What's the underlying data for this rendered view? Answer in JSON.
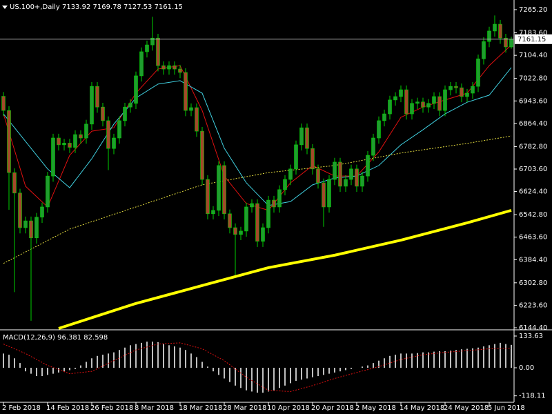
{
  "chart_data": [
    {
      "type": "candlestick",
      "title": "US.100+,Daily 7133.92 7169.78 7127.53 7161.15",
      "categories": [
        "2 Feb 2018",
        null,
        null,
        null,
        null,
        null,
        null,
        null,
        "14 Feb 2018",
        null,
        null,
        null,
        null,
        null,
        null,
        null,
        "26 Feb 2018",
        null,
        null,
        null,
        null,
        null,
        null,
        null,
        "8 Mar 2018",
        null,
        null,
        null,
        null,
        null,
        null,
        null,
        "18 Mar 2018",
        null,
        null,
        null,
        null,
        null,
        null,
        null,
        "28 Mar 2018",
        null,
        null,
        null,
        null,
        null,
        null,
        null,
        "10 Apr 2018",
        null,
        null,
        null,
        null,
        null,
        null,
        null,
        "20 Apr 2018",
        null,
        null,
        null,
        null,
        null,
        null,
        null,
        "2 May 2018",
        null,
        null,
        null,
        null,
        null,
        null,
        null,
        "14 May 2018",
        null,
        null,
        null,
        null,
        null,
        null,
        null,
        "24 May 2018",
        null,
        null,
        null,
        null,
        null,
        null,
        null,
        "5 Jun 2018",
        null,
        null,
        null,
        null
      ],
      "open": [
        6960,
        6910,
        6691,
        6619,
        6497,
        6521,
        6461,
        6534,
        6570,
        6679,
        6813,
        6789,
        6795,
        6780,
        6825,
        6813,
        6862,
        6995,
        6922,
        6874,
        6776,
        6813,
        6874,
        6922,
        6935,
        7032,
        7117,
        7141,
        7165,
        7068,
        7056,
        7068,
        7056,
        7044,
        6910,
        6920,
        6837,
        6667,
        6546,
        6558,
        6716,
        6546,
        6497,
        6473,
        6485,
        6570,
        6582,
        6449,
        6497,
        6594,
        6570,
        6631,
        6667,
        6704,
        6789,
        6849,
        6776,
        6704,
        6655,
        6570,
        6667,
        6728,
        6643,
        6667,
        6704,
        6643,
        6679,
        6752,
        6813,
        6874,
        6898,
        6947,
        6959,
        6983,
        6898,
        6935,
        6940,
        6922,
        6935,
        6959,
        6910,
        6983,
        6995,
        6990,
        6959,
        6971,
        6995,
        7092,
        7153,
        7190,
        7214,
        7165,
        7133.92
      ],
      "high": [
        6975,
        6925,
        6706,
        6634,
        6536,
        6536,
        6549,
        6585,
        6694,
        6828,
        6828,
        6810,
        6810,
        6840,
        6840,
        6877,
        7010,
        7010,
        6937,
        6889,
        6828,
        6889,
        6937,
        6950,
        7047,
        7132,
        7156,
        7240,
        7180,
        7083,
        7083,
        7083,
        7071,
        7059,
        6935,
        6935,
        6852,
        6682,
        6573,
        6731,
        6731,
        6561,
        6512,
        6500,
        6585,
        6597,
        6597,
        6512,
        6609,
        6609,
        6646,
        6682,
        6719,
        6804,
        6864,
        6864,
        6791,
        6719,
        6670,
        6682,
        6743,
        6743,
        6682,
        6719,
        6719,
        6694,
        6767,
        6828,
        6889,
        6913,
        6962,
        6974,
        6998,
        6998,
        6950,
        6955,
        6955,
        6950,
        6974,
        6974,
        6998,
        7010,
        7010,
        7005,
        6986,
        7010,
        7107,
        7168,
        7205,
        7245,
        7229,
        7180,
        7169.78
      ],
      "low": [
        6890,
        6560,
        6270,
        6477,
        6477,
        6169,
        6441,
        6514,
        6550,
        6659,
        6769,
        6769,
        6760,
        6760,
        6793,
        6793,
        6842,
        6902,
        6854,
        6700,
        6756,
        6793,
        6854,
        6902,
        6915,
        7012,
        7097,
        7121,
        7048,
        7036,
        7036,
        7036,
        7024,
        6890,
        6890,
        6817,
        6647,
        6526,
        6526,
        6538,
        6526,
        6477,
        6330,
        6453,
        6465,
        6550,
        6429,
        6429,
        6477,
        6550,
        6550,
        6611,
        6647,
        6684,
        6769,
        6756,
        6684,
        6635,
        6500,
        6550,
        6647,
        6623,
        6623,
        6647,
        6623,
        6623,
        6659,
        6732,
        6793,
        6854,
        6878,
        6927,
        6939,
        6878,
        6878,
        6915,
        6902,
        6902,
        6915,
        6890,
        6890,
        6963,
        6970,
        6939,
        6939,
        6951,
        6975,
        7072,
        7133,
        7170,
        7145,
        7114,
        7127.53
      ],
      "close": [
        6910,
        6691,
        6619,
        6497,
        6521,
        6461,
        6534,
        6570,
        6679,
        6813,
        6789,
        6795,
        6780,
        6825,
        6813,
        6862,
        6995,
        6922,
        6874,
        6776,
        6813,
        6874,
        6922,
        6935,
        7032,
        7117,
        7141,
        7165,
        7068,
        7056,
        7068,
        7056,
        7044,
        6910,
        6920,
        6837,
        6667,
        6546,
        6558,
        6716,
        6546,
        6497,
        6473,
        6485,
        6570,
        6582,
        6449,
        6497,
        6594,
        6570,
        6631,
        6667,
        6704,
        6789,
        6849,
        6776,
        6704,
        6655,
        6570,
        6667,
        6728,
        6643,
        6667,
        6704,
        6643,
        6679,
        6752,
        6813,
        6874,
        6898,
        6947,
        6959,
        6983,
        6898,
        6935,
        6940,
        6922,
        6935,
        6959,
        6910,
        6983,
        6995,
        6990,
        6959,
        6971,
        6995,
        7092,
        7153,
        7190,
        7214,
        7165,
        7134,
        7161.15
      ],
      "up_color": "#1f9e2e",
      "down_color": "#a34a2a",
      "wick_color": "#00d000",
      "series": [
        {
          "color": "#e01010",
          "line_style": "solid",
          "x": [
            0,
            4,
            8,
            12,
            16,
            20,
            24,
            28,
            32,
            36,
            40,
            44,
            48,
            52,
            56,
            60,
            64,
            68,
            72,
            76,
            80,
            84,
            88,
            92
          ],
          "values": [
            6898,
            6643,
            6570,
            6752,
            6837,
            6849,
            6971,
            7056,
            7068,
            6910,
            6679,
            6582,
            6558,
            6655,
            6716,
            6679,
            6679,
            6764,
            6886,
            6922,
            6947,
            6971,
            7068,
            7141
          ]
        },
        {
          "color": "#40d0e0",
          "line_style": "solid",
          "x": [
            0,
            4,
            8,
            12,
            16,
            20,
            24,
            28,
            32,
            36,
            40,
            44,
            48,
            52,
            56,
            60,
            64,
            68,
            72,
            76,
            80,
            84,
            88,
            92
          ],
          "values": [
            6898,
            6801,
            6704,
            6638,
            6740,
            6862,
            6954,
            7003,
            7015,
            6971,
            6777,
            6655,
            6575,
            6589,
            6648,
            6672,
            6679,
            6716,
            6789,
            6842,
            6898,
            6939,
            6964,
            7061
          ]
        },
        {
          "color": "#e8e040",
          "line_style": "dashed",
          "x": [
            0,
            12,
            24,
            36,
            48,
            60,
            72,
            84,
            92
          ],
          "values": [
            6371,
            6492,
            6570,
            6648,
            6691,
            6716,
            6760,
            6794,
            6820
          ]
        },
        {
          "color": "#ffff00",
          "line_style": "bold",
          "x": [
            10,
            24,
            36,
            48,
            60,
            72,
            84,
            92
          ],
          "values": [
            6142,
            6230,
            6293,
            6356,
            6400,
            6453,
            6514,
            6558
          ]
        }
      ],
      "current_price": {
        "value": 7161.15,
        "label": "7161.15"
      },
      "ylim": [
        6139.5,
        7294.4
      ],
      "yticks": [
        {
          "value": 7265.2,
          "label": "7265.20"
        },
        {
          "value": 7183.6,
          "label": "7183.60"
        },
        {
          "value": 7104.4,
          "label": "7104.40"
        },
        {
          "value": 7022.8,
          "label": "7022.80"
        },
        {
          "value": 6943.6,
          "label": "6943.60"
        },
        {
          "value": 6864.4,
          "label": "6864.40"
        },
        {
          "value": 6782.8,
          "label": "6782.80"
        },
        {
          "value": 6703.6,
          "label": "6703.60"
        },
        {
          "value": 6624.4,
          "label": "6624.40"
        },
        {
          "value": 6542.8,
          "label": "6542.80"
        },
        {
          "value": 6463.6,
          "label": "6463.60"
        },
        {
          "value": 6384.4,
          "label": "6384.40"
        },
        {
          "value": 6302.8,
          "label": "6302.80"
        },
        {
          "value": 6223.6,
          "label": "6223.60"
        },
        {
          "value": 6144.4,
          "label": "6144.40"
        }
      ]
    },
    {
      "type": "macd",
      "title": "MACD(12,26,9) 96.381 82.598",
      "values": [
        60,
        55,
        40,
        20,
        -15,
        -25,
        -35,
        -35,
        -30,
        -25,
        -20,
        -15,
        -10,
        -5,
        10,
        25,
        40,
        50,
        55,
        60,
        65,
        75,
        85,
        95,
        100,
        105,
        110,
        110,
        108,
        100,
        95,
        90,
        85,
        75,
        60,
        45,
        25,
        5,
        -15,
        -30,
        -45,
        -60,
        -75,
        -85,
        -95,
        -100,
        -105,
        -105,
        -100,
        -95,
        -85,
        -75,
        -65,
        -55,
        -50,
        -45,
        -40,
        -35,
        -30,
        -25,
        -20,
        -15,
        -10,
        -5,
        0,
        5,
        10,
        20,
        30,
        40,
        50,
        55,
        60,
        60,
        60,
        62,
        65,
        65,
        68,
        70,
        70,
        72,
        75,
        78,
        80,
        82,
        85,
        90,
        95,
        100,
        105,
        100,
        96.381
      ],
      "color": "#ffffff",
      "signal": {
        "color": "#e01010",
        "x": [
          0,
          4,
          8,
          12,
          16,
          20,
          24,
          28,
          32,
          36,
          40,
          44,
          48,
          52,
          56,
          60,
          64,
          68,
          72,
          76,
          80,
          84,
          88,
          92
        ],
        "values": [
          100,
          60,
          10,
          -25,
          -15,
          30,
          75,
          100,
          105,
          80,
          30,
          -40,
          -95,
          -100,
          -75,
          -45,
          -20,
          5,
          35,
          55,
          65,
          72,
          80,
          82.598
        ]
      },
      "ylim": [
        -136.5,
        151.1
      ],
      "yticks": [
        133.63,
        {
          "value": 0,
          "label": "0.00"
        },
        -118.11
      ]
    }
  ]
}
